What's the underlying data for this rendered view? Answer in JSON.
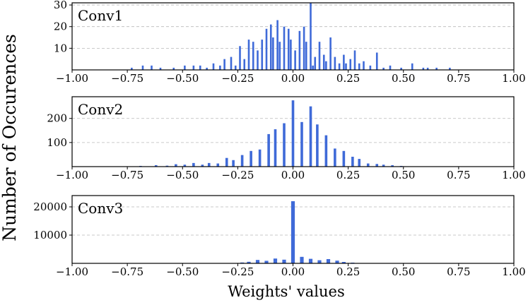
{
  "figure": {
    "ylabel": "Number of Occurences",
    "xlabel": "Weights' values"
  },
  "chart_data": [
    {
      "type": "bar",
      "title": "Conv1",
      "xlabel": "Weights' values",
      "ylabel": "Number of Occurences",
      "xlim": [
        -1.0,
        1.0
      ],
      "ylim": [
        0,
        31
      ],
      "xticks": [
        -1.0,
        -0.75,
        -0.5,
        -0.25,
        0.0,
        0.25,
        0.5,
        0.75,
        1.0
      ],
      "xtick_labels": [
        "−1.00",
        "−0.75",
        "−0.50",
        "−0.25",
        "0.00",
        "0.25",
        "0.50",
        "0.75",
        "1.00"
      ],
      "yticks": [
        10,
        20,
        30
      ],
      "ytick_labels": [
        "10",
        "20",
        "30"
      ],
      "grid": "horizontal dashed",
      "x": [
        -0.73,
        -0.68,
        -0.64,
        -0.6,
        -0.54,
        -0.49,
        -0.45,
        -0.42,
        -0.39,
        -0.36,
        -0.33,
        -0.31,
        -0.28,
        -0.26,
        -0.24,
        -0.22,
        -0.2,
        -0.18,
        -0.16,
        -0.14,
        -0.12,
        -0.1,
        -0.09,
        -0.07,
        -0.06,
        -0.04,
        -0.02,
        -0.01,
        0.01,
        0.03,
        0.05,
        0.06,
        0.08,
        0.09,
        0.1,
        0.12,
        0.14,
        0.15,
        0.17,
        0.19,
        0.21,
        0.23,
        0.24,
        0.26,
        0.28,
        0.3,
        0.32,
        0.35,
        0.38,
        0.41,
        0.44,
        0.49,
        0.54,
        0.59,
        0.61,
        0.65,
        0.71
      ],
      "values": [
        1,
        2,
        2,
        1,
        1,
        2,
        2,
        2,
        1,
        3,
        2,
        5,
        6,
        2,
        11,
        5,
        14,
        13,
        9,
        14,
        19,
        21,
        15,
        23,
        13,
        20,
        19,
        14,
        9,
        18,
        20,
        13,
        31,
        2,
        6,
        13,
        7,
        4,
        15,
        6,
        3,
        7,
        3,
        5,
        9,
        3,
        4,
        2,
        8,
        1,
        2,
        1,
        3,
        1,
        1,
        1,
        1
      ]
    },
    {
      "type": "bar",
      "title": "Conv2",
      "xlabel": "Weights' values",
      "ylabel": "Number of Occurences",
      "xlim": [
        -1.0,
        1.0
      ],
      "ylim": [
        0,
        290
      ],
      "xticks": [
        -1.0,
        -0.75,
        -0.5,
        -0.25,
        0.0,
        0.25,
        0.5,
        0.75,
        1.0
      ],
      "xtick_labels": [
        "−1.00",
        "−0.75",
        "−0.50",
        "−0.25",
        "0.00",
        "0.25",
        "0.50",
        "0.75",
        "1.00"
      ],
      "yticks": [
        100,
        200
      ],
      "ytick_labels": [
        "100",
        "200"
      ],
      "grid": "horizontal dashed",
      "x": [
        -0.69,
        -0.62,
        -0.57,
        -0.53,
        -0.49,
        -0.45,
        -0.41,
        -0.38,
        -0.34,
        -0.3,
        -0.27,
        -0.23,
        -0.19,
        -0.15,
        -0.11,
        -0.08,
        -0.04,
        0.0,
        0.04,
        0.08,
        0.11,
        0.15,
        0.19,
        0.23,
        0.27,
        0.3,
        0.34,
        0.38,
        0.41,
        0.45,
        0.49
      ],
      "values": [
        3,
        6,
        4,
        10,
        8,
        15,
        8,
        15,
        13,
        36,
        27,
        48,
        65,
        71,
        135,
        155,
        180,
        275,
        185,
        250,
        175,
        130,
        75,
        65,
        41,
        32,
        13,
        11,
        8,
        6,
        3
      ]
    },
    {
      "type": "bar",
      "title": "Conv3",
      "xlabel": "Weights' values",
      "ylabel": "Number of Occurences",
      "xlim": [
        -1.0,
        1.0
      ],
      "ylim": [
        0,
        24000
      ],
      "xticks": [
        -1.0,
        -0.75,
        -0.5,
        -0.25,
        0.0,
        0.25,
        0.5,
        0.75,
        1.0
      ],
      "xtick_labels": [
        "−1.00",
        "−0.75",
        "−0.50",
        "−0.25",
        "0.00",
        "0.25",
        "0.50",
        "0.75",
        "1.00"
      ],
      "yticks": [
        10000,
        20000
      ],
      "ytick_labels": [
        "10000",
        "20000"
      ],
      "grid": "horizontal dashed",
      "x": [
        -0.23,
        -0.2,
        -0.16,
        -0.12,
        -0.08,
        -0.04,
        0.0,
        0.04,
        0.08,
        0.12,
        0.16,
        0.2,
        0.23,
        0.27
      ],
      "values": [
        300,
        550,
        1200,
        900,
        1700,
        1300,
        22000,
        2300,
        1600,
        1100,
        1500,
        950,
        500,
        250
      ]
    }
  ]
}
